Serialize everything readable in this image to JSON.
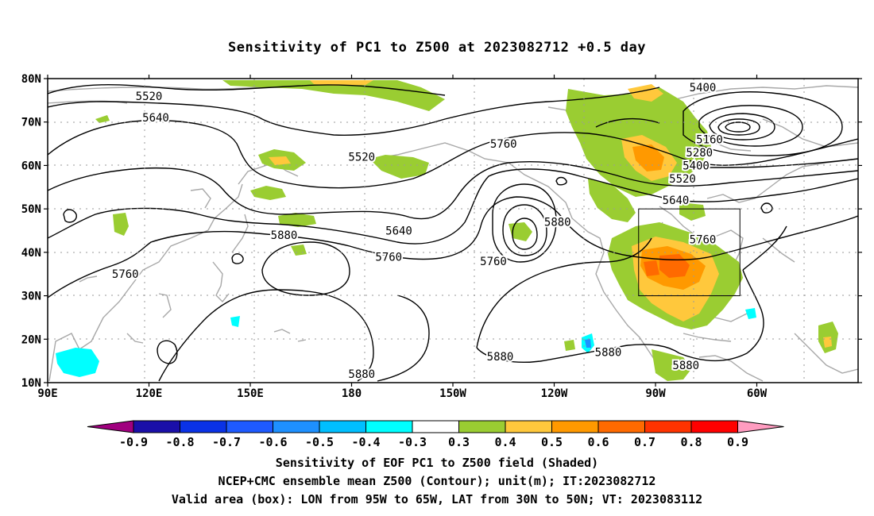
{
  "title": "Sensitivity of PC1 to Z500 at 2023082712 +0.5 day",
  "map": {
    "lat_labels": [
      "80N",
      "70N",
      "60N",
      "50N",
      "40N",
      "30N",
      "20N",
      "10N"
    ],
    "lon_labels": [
      "90E",
      "120E",
      "150E",
      "180",
      "150W",
      "120W",
      "90W",
      "60W"
    ],
    "contour_labels": [
      {
        "text": "5520",
        "lon": 120,
        "lat": 76
      },
      {
        "text": "5640",
        "lon": 122,
        "lat": 71
      },
      {
        "text": "5520",
        "lon": 183,
        "lat": 62
      },
      {
        "text": "5640",
        "lon": 194,
        "lat": 45
      },
      {
        "text": "5760",
        "lon": 191,
        "lat": 39
      },
      {
        "text": "5880",
        "lon": 160,
        "lat": 44
      },
      {
        "text": "5760",
        "lon": 113,
        "lat": 35
      },
      {
        "text": "5880",
        "lon": 183,
        "lat": 12
      },
      {
        "text": "5880",
        "lon": 224,
        "lat": 16
      },
      {
        "text": "5760",
        "lon": 222,
        "lat": 38
      },
      {
        "text": "5760",
        "lon": 225,
        "lat": 65
      },
      {
        "text": "5880",
        "lon": 241,
        "lat": 47
      },
      {
        "text": "5400",
        "lon": 284,
        "lat": 78
      },
      {
        "text": "5160",
        "lon": 286,
        "lat": 66
      },
      {
        "text": "5280",
        "lon": 283,
        "lat": 63
      },
      {
        "text": "5400",
        "lon": 282,
        "lat": 60
      },
      {
        "text": "5520",
        "lon": 278,
        "lat": 57
      },
      {
        "text": "5640",
        "lon": 276,
        "lat": 52
      },
      {
        "text": "5760",
        "lon": 284,
        "lat": 43
      },
      {
        "text": "5880",
        "lon": 256,
        "lat": 17
      },
      {
        "text": "5880",
        "lon": 279,
        "lat": 14
      }
    ],
    "valid_box": {
      "lon_min": 265,
      "lon_max": 295,
      "lat_min": 30,
      "lat_max": 50
    }
  },
  "colorbar": {
    "labels": [
      "-0.9",
      "-0.8",
      "-0.7",
      "-0.6",
      "-0.5",
      "-0.4",
      "-0.3",
      "0.3",
      "0.4",
      "0.5",
      "0.6",
      "0.7",
      "0.8",
      "0.9"
    ],
    "colors": [
      "#a0007f",
      "#1a0fa8",
      "#0a32e6",
      "#1e5aff",
      "#1e90ff",
      "#00bfff",
      "#00ffff",
      "#ffffff",
      "#9acd32",
      "#ffc83c",
      "#ff9900",
      "#ff6a00",
      "#ff3300",
      "#ff0000",
      "#ff9cc0"
    ]
  },
  "captions": [
    "Sensitivity of EOF PC1 to Z500 field (Shaded)",
    "NCEP+CMC ensemble mean Z500 (Contour); unit(m); IT:2023082712",
    "Valid area (box): LON from 95W to 65W, LAT from 30N to 50N; VT: 2023083112"
  ]
}
